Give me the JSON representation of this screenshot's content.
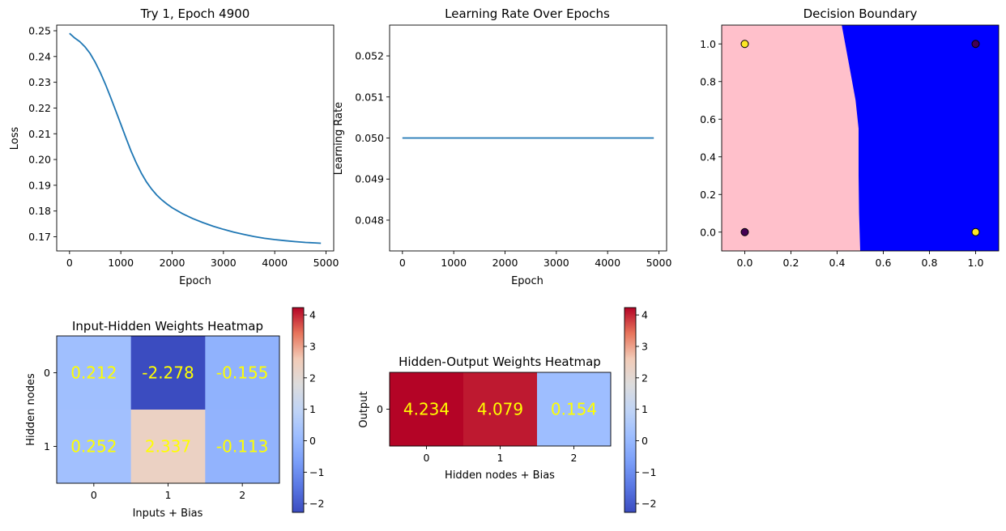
{
  "chart_data": [
    {
      "type": "line",
      "title": "Try 1, Epoch 4900",
      "xlabel": "Epoch",
      "ylabel": "Loss",
      "xlim": [
        -250,
        5150
      ],
      "ylim": [
        0.1645,
        0.2522
      ],
      "xticks": [
        0,
        1000,
        2000,
        3000,
        4000,
        5000
      ],
      "yticks": [
        0.17,
        0.18,
        0.19,
        0.2,
        0.21,
        0.22,
        0.23,
        0.24,
        0.25
      ],
      "ytick_labels": [
        "0.17",
        "0.18",
        "0.19",
        "0.20",
        "0.21",
        "0.22",
        "0.23",
        "0.24",
        "0.25"
      ],
      "color": "#1f77b4",
      "x": [
        0,
        100,
        200,
        300,
        400,
        500,
        600,
        700,
        800,
        900,
        1000,
        1100,
        1200,
        1300,
        1400,
        1500,
        1600,
        1700,
        1800,
        1900,
        2000,
        2200,
        2400,
        2600,
        2800,
        3000,
        3200,
        3400,
        3600,
        3800,
        4000,
        4200,
        4400,
        4600,
        4800,
        4900
      ],
      "y": [
        0.249,
        0.2472,
        0.2458,
        0.2438,
        0.2412,
        0.2378,
        0.2338,
        0.2292,
        0.2242,
        0.219,
        0.2137,
        0.2084,
        0.2033,
        0.1987,
        0.1947,
        0.1913,
        0.1885,
        0.1862,
        0.1843,
        0.1827,
        0.1813,
        0.179,
        0.1771,
        0.1755,
        0.1741,
        0.1729,
        0.1718,
        0.1709,
        0.1701,
        0.1694,
        0.1689,
        0.1685,
        0.1681,
        0.1678,
        0.1676,
        0.1675
      ]
    },
    {
      "type": "line",
      "title": "Learning Rate Over Epochs",
      "xlabel": "Epoch",
      "ylabel": "Learning Rate",
      "xlim": [
        -250,
        5150
      ],
      "ylim": [
        0.04725,
        0.05275
      ],
      "xticks": [
        0,
        1000,
        2000,
        3000,
        4000,
        5000
      ],
      "yticks": [
        0.048,
        0.049,
        0.05,
        0.051,
        0.052
      ],
      "ytick_labels": [
        "0.048",
        "0.049",
        "0.050",
        "0.051",
        "0.052"
      ],
      "color": "#1f77b4",
      "x": [
        0,
        4900
      ],
      "y": [
        0.05,
        0.05
      ]
    },
    {
      "type": "scatter",
      "title": "Decision Boundary",
      "xlim": [
        -0.1,
        1.1
      ],
      "ylim": [
        -0.1,
        1.1
      ],
      "xticks": [
        0.0,
        0.2,
        0.4,
        0.6,
        0.8,
        1.0
      ],
      "yticks": [
        0.0,
        0.2,
        0.4,
        0.6,
        0.8,
        1.0
      ],
      "tick_labels": [
        "0.0",
        "0.2",
        "0.4",
        "0.6",
        "0.8",
        "1.0"
      ],
      "region_colors": {
        "class0": "#ffc0cb",
        "class1": "#0000ff"
      },
      "boundary": [
        [
          0.42,
          1.1
        ],
        [
          0.45,
          0.9
        ],
        [
          0.48,
          0.7
        ],
        [
          0.493,
          0.55
        ],
        [
          0.493,
          0.3
        ],
        [
          0.495,
          0.1
        ],
        [
          0.5,
          -0.1
        ]
      ],
      "points": [
        {
          "x": 0,
          "y": 0,
          "label": 0
        },
        {
          "x": 0,
          "y": 1,
          "label": 1
        },
        {
          "x": 1,
          "y": 0,
          "label": 1
        },
        {
          "x": 1,
          "y": 1,
          "label": 0
        }
      ],
      "point_colors": {
        "0": "#440154",
        "1": "#fde725"
      }
    },
    {
      "type": "heatmap",
      "title": "Input-Hidden Weights Heatmap",
      "xlabel": "Inputs + Bias",
      "ylabel": "Hidden nodes",
      "xticks": [
        "0",
        "1",
        "2"
      ],
      "yticks": [
        "0",
        "1"
      ],
      "values": [
        [
          0.212,
          -2.278,
          -0.155
        ],
        [
          0.252,
          2.337,
          -0.113
        ]
      ],
      "cell_labels": [
        [
          "0.212",
          "-2.278",
          "-0.155"
        ],
        [
          "0.252",
          "2.337",
          "-0.113"
        ]
      ],
      "annotation_color": "#ffff00",
      "colormap": "coolwarm",
      "vmin": -2.278,
      "vmax": 4.234,
      "colorbar_ticks": [
        4,
        3,
        2,
        1,
        0,
        -1,
        -2
      ],
      "colorbar_tick_labels": [
        "4",
        "3",
        "2",
        "1",
        "0",
        "−1",
        "−2"
      ]
    },
    {
      "type": "heatmap",
      "title": "Hidden-Output Weights Heatmap",
      "xlabel": "Hidden nodes + Bias",
      "ylabel": "Output",
      "xticks": [
        "0",
        "1",
        "2"
      ],
      "yticks": [
        "0"
      ],
      "values": [
        [
          4.234,
          4.079,
          0.154
        ]
      ],
      "cell_labels": [
        [
          "4.234",
          "4.079",
          "0.154"
        ]
      ],
      "annotation_color": "#ffff00",
      "colormap": "coolwarm",
      "vmin": -2.278,
      "vmax": 4.234,
      "colorbar_ticks": [
        4,
        3,
        2,
        1,
        0,
        -1,
        -2
      ],
      "colorbar_tick_labels": [
        "4",
        "3",
        "2",
        "1",
        "0",
        "−1",
        "−2"
      ]
    }
  ]
}
